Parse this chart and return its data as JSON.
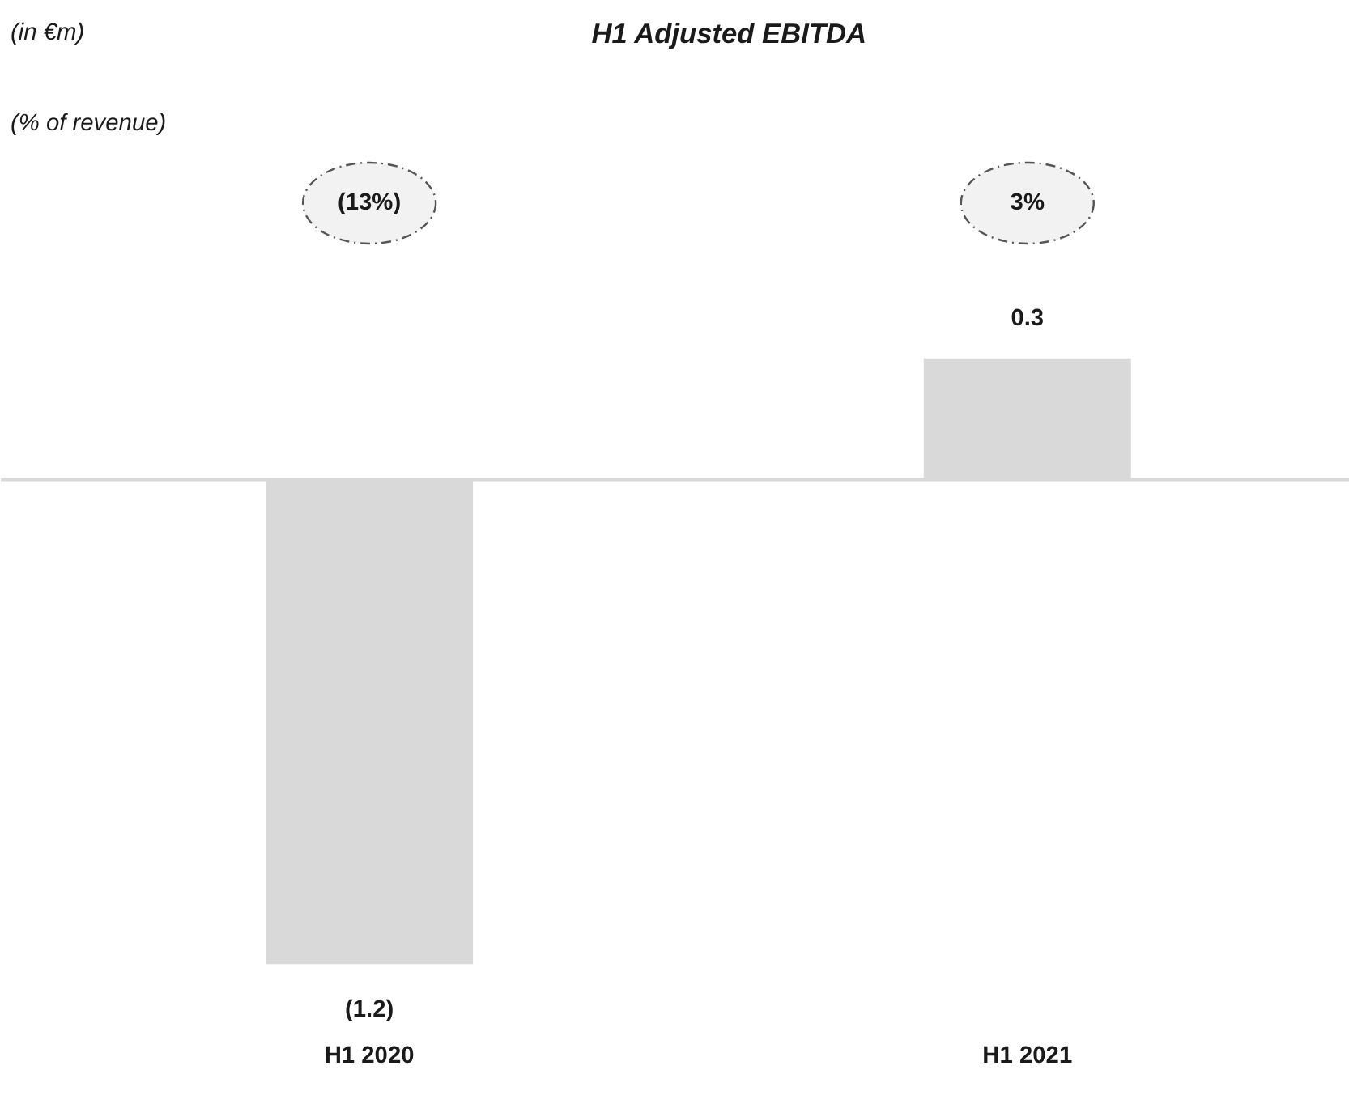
{
  "chart_data": {
    "type": "bar",
    "title": "H1 Adjusted EBITDA",
    "categories": [
      "H1 2020",
      "H1 2021"
    ],
    "values": [
      -1.2,
      0.3
    ],
    "value_labels": [
      "(1.2)",
      "0.3"
    ],
    "color": "#d9d9d9",
    "annotations": [
      "(in €m)",
      "(% of revenue)",
      "(13%)",
      "3%"
    ]
  }
}
